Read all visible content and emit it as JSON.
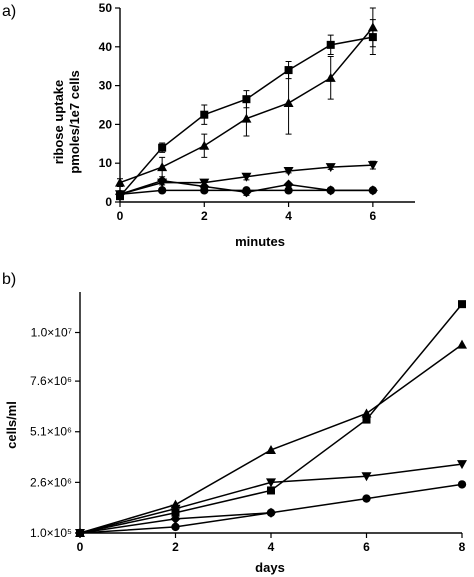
{
  "chart_data": [
    {
      "panel_label": "a)",
      "type": "line",
      "xlabel": "minutes",
      "ylabel_lines": [
        "ribose uptake",
        "pmoles/1e7 cells"
      ],
      "xlim": [
        0,
        7
      ],
      "ylim": [
        0,
        50
      ],
      "xticks": [
        0,
        2,
        4,
        6
      ],
      "yticks": [
        0,
        10,
        20,
        30,
        40,
        50
      ],
      "series": [
        {
          "marker": "square",
          "x": [
            0,
            1,
            2,
            3,
            4,
            5,
            6
          ],
          "y": [
            1.5,
            14,
            22.5,
            26.5,
            34,
            40.5,
            42.5
          ],
          "err": [
            0.5,
            1.2,
            2.5,
            2.2,
            2.2,
            2.5,
            4.5
          ]
        },
        {
          "marker": "triangle-up",
          "x": [
            0,
            1,
            2,
            3,
            4,
            5,
            6
          ],
          "y": [
            5,
            9,
            14.5,
            21.5,
            25.5,
            32,
            45
          ],
          "err": [
            1,
            2.5,
            3,
            4.5,
            8,
            5.5,
            5
          ]
        },
        {
          "marker": "triangle-down",
          "x": [
            0,
            1,
            2,
            3,
            4,
            5,
            6
          ],
          "y": [
            2,
            5,
            5,
            6.5,
            8,
            9,
            9.5
          ],
          "err": [
            0.5,
            0.6,
            0.6,
            0.8,
            0.5,
            0.6,
            1
          ]
        },
        {
          "marker": "diamond",
          "x": [
            0,
            1,
            2,
            3,
            4,
            5,
            6
          ],
          "y": [
            2,
            5.5,
            4,
            2.5,
            4.5,
            3,
            3
          ],
          "err": [
            0.3,
            0.5,
            0.4,
            0.8,
            0.4,
            0.3,
            0.3
          ]
        },
        {
          "marker": "circle",
          "x": [
            0,
            1,
            2,
            3,
            4,
            5,
            6
          ],
          "y": [
            2,
            3,
            3,
            3,
            3,
            3,
            3
          ],
          "err": [
            0,
            0,
            0,
            0,
            0,
            0,
            0
          ]
        }
      ]
    },
    {
      "panel_label": "b)",
      "type": "line",
      "xlabel": "days",
      "ylabel": "cells/ml",
      "xlim": [
        0,
        8
      ],
      "ylim": [
        100000,
        12000000
      ],
      "xticks": [
        0,
        2,
        4,
        6,
        8
      ],
      "yticks": [
        100000,
        2600000,
        5100000,
        7600000,
        10000000
      ],
      "ytick_labels": [
        "1.0×10⁵",
        "2.6×10⁶",
        "5.1×10⁶",
        "7.6×10⁶",
        "1.0×10⁷"
      ],
      "series": [
        {
          "marker": "square",
          "x": [
            0,
            2,
            4,
            6,
            8
          ],
          "y": [
            100000,
            1100000,
            2200000,
            5700000,
            11400000
          ]
        },
        {
          "marker": "triangle-up",
          "x": [
            0,
            2,
            4,
            6,
            8
          ],
          "y": [
            100000,
            1500000,
            4200000,
            6000000,
            9400000
          ]
        },
        {
          "marker": "triangle-down",
          "x": [
            0,
            2,
            4,
            6,
            8
          ],
          "y": [
            100000,
            1300000,
            2600000,
            2900000,
            3500000
          ]
        },
        {
          "marker": "diamond",
          "x": [
            0,
            2,
            4
          ],
          "y": [
            100000,
            800000,
            1100000
          ]
        },
        {
          "marker": "circle",
          "x": [
            0,
            2,
            4,
            6,
            8
          ],
          "y": [
            100000,
            400000,
            1100000,
            1800000,
            2500000
          ]
        }
      ]
    }
  ]
}
